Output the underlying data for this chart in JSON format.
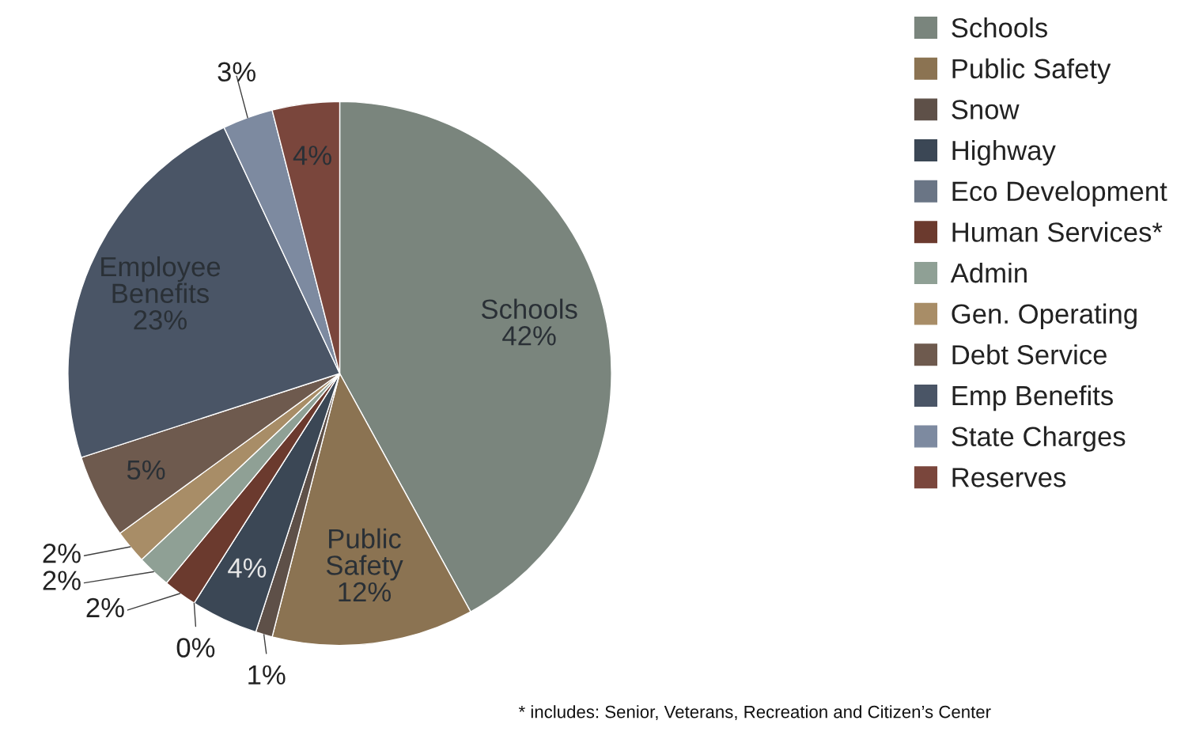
{
  "chart_data": {
    "type": "pie",
    "categories": [
      "Schools",
      "Public Safety",
      "Snow",
      "Highway",
      "Eco Development",
      "Human Services*",
      "Admin",
      "Gen. Operating",
      "Debt Service",
      "Emp Benefits",
      "State Charges",
      "Reserves"
    ],
    "values": [
      42,
      12,
      1,
      4,
      0,
      2,
      2,
      2,
      5,
      23,
      3,
      4
    ],
    "colors": [
      "#7a857d",
      "#8b7352",
      "#5e5048",
      "#3b4755",
      "#6a7585",
      "#6b3a2e",
      "#8fa095",
      "#a88d67",
      "#6e5a4e",
      "#4a5566",
      "#7d8aa0",
      "#7a463c"
    ],
    "value_labels": [
      "Schools\n42%",
      "Public\nSafety\n12%",
      "1%",
      "4%",
      "0%",
      "2%",
      "2%",
      "2%",
      "5%",
      "Employee\nBenefits\n23%",
      "3%",
      "4%"
    ],
    "legend": "top right",
    "annotations": [
      "* includes: Senior, Veterans, Recreation and Citizen’s Center"
    ]
  }
}
